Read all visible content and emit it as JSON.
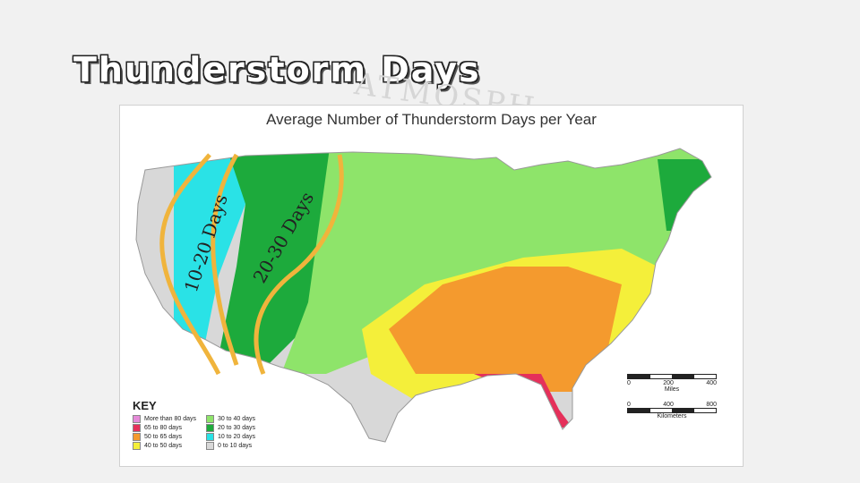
{
  "slide": {
    "title": "Thunderstorm Days"
  },
  "watermark": {
    "text": "ATMOSPH"
  },
  "map": {
    "heading": "Average Number of Thunderstorm Days per Year",
    "annotations": {
      "label_a": "10-20 Days",
      "label_b": "20-30 Days"
    },
    "colors": {
      "pink": "#e58ad8",
      "red": "#e5305a",
      "orange": "#f49a2e",
      "yellow": "#f4ef3a",
      "light_green": "#8ee46a",
      "green": "#1daa3c",
      "cyan": "#2ae2e6",
      "gray": "#d8d8d8",
      "outline": "#f0b43c"
    },
    "key": {
      "title": "KEY",
      "items": [
        {
          "label": "More than 80 days",
          "color": "#e58ad8"
        },
        {
          "label": "30 to 40 days",
          "color": "#8ee46a"
        },
        {
          "label": "65 to 80 days",
          "color": "#e5305a"
        },
        {
          "label": "20 to 30 days",
          "color": "#1daa3c"
        },
        {
          "label": "50 to 65 days",
          "color": "#f49a2e"
        },
        {
          "label": "10 to 20 days",
          "color": "#2ae2e6"
        },
        {
          "label": "40 to 50 days",
          "color": "#f4ef3a"
        },
        {
          "label": "0 to 10 days",
          "color": "#d8d8d8"
        }
      ]
    },
    "scales": {
      "miles": {
        "ticks": [
          "0",
          "200",
          "400"
        ],
        "unit": "Miles"
      },
      "km": {
        "ticks": [
          "0",
          "400",
          "800"
        ],
        "unit": "Kilometers"
      }
    }
  }
}
